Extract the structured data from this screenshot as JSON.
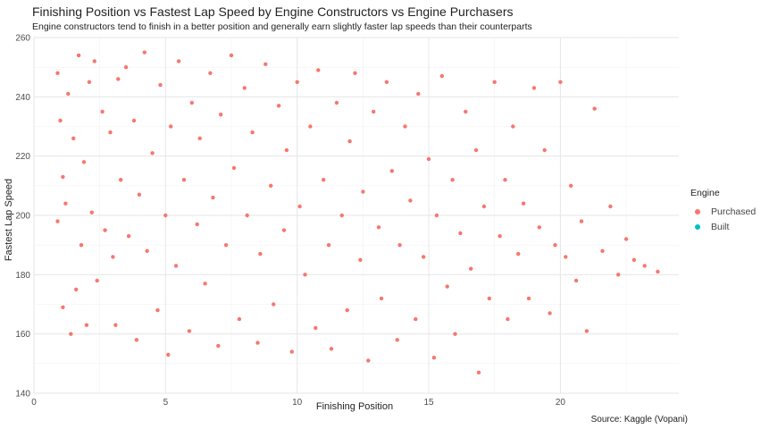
{
  "chart_data": {
    "type": "scatter",
    "title": "Finishing Position vs Fastest Lap Speed by Engine Constructors vs Engine Purchasers",
    "subtitle": "Engine constructors tend to finish in a better position and generally earn slightly faster lap speeds than their counterparts",
    "xlabel": "Finishing Position",
    "ylabel": "Fastest Lap Speed",
    "caption": "Source: Kaggle (Vopani)",
    "xlim": [
      0,
      24.5
    ],
    "ylim": [
      140,
      260
    ],
    "xticks": [
      "0",
      "5",
      "10",
      "15",
      "20"
    ],
    "yticks": [
      "140",
      "160",
      "180",
      "200",
      "220",
      "240",
      "260"
    ],
    "grid": true,
    "legend": {
      "title": "Engine",
      "placement": "right",
      "entries": [
        {
          "name": "Purchased",
          "color": "#F8766D"
        },
        {
          "name": "Built",
          "color": "#00BFC4"
        }
      ]
    },
    "series": [
      {
        "name": "Purchased",
        "color": "#F8766D",
        "points": [
          [
            0.9,
            248
          ],
          [
            0.9,
            198
          ],
          [
            1,
            232
          ],
          [
            1.1,
            169
          ],
          [
            1.1,
            213
          ],
          [
            1.2,
            204
          ],
          [
            1.3,
            241
          ],
          [
            1.4,
            160
          ],
          [
            1.5,
            226
          ],
          [
            1.6,
            175
          ],
          [
            1.7,
            254
          ],
          [
            1.8,
            190
          ],
          [
            1.9,
            218
          ],
          [
            2,
            163
          ],
          [
            2.1,
            245
          ],
          [
            2.2,
            201
          ],
          [
            2.3,
            252
          ],
          [
            2.4,
            178
          ],
          [
            2.6,
            235
          ],
          [
            2.7,
            195
          ],
          [
            2.9,
            228
          ],
          [
            3,
            186
          ],
          [
            3.1,
            163
          ],
          [
            3.2,
            246
          ],
          [
            3.3,
            212
          ],
          [
            3.5,
            250
          ],
          [
            3.6,
            193
          ],
          [
            3.8,
            232
          ],
          [
            3.9,
            158
          ],
          [
            4,
            207
          ],
          [
            4.2,
            255
          ],
          [
            4.3,
            188
          ],
          [
            4.5,
            221
          ],
          [
            4.7,
            168
          ],
          [
            4.8,
            244
          ],
          [
            5,
            200
          ],
          [
            5.1,
            153
          ],
          [
            5.2,
            230
          ],
          [
            5.4,
            183
          ],
          [
            5.5,
            252
          ],
          [
            5.7,
            212
          ],
          [
            5.9,
            161
          ],
          [
            6,
            238
          ],
          [
            6.2,
            197
          ],
          [
            6.3,
            226
          ],
          [
            6.5,
            177
          ],
          [
            6.7,
            248
          ],
          [
            6.8,
            206
          ],
          [
            7,
            156
          ],
          [
            7.1,
            234
          ],
          [
            7.3,
            190
          ],
          [
            7.5,
            254
          ],
          [
            7.6,
            216
          ],
          [
            7.8,
            165
          ],
          [
            8,
            243
          ],
          [
            8.1,
            200
          ],
          [
            8.3,
            228
          ],
          [
            8.5,
            157
          ],
          [
            8.6,
            187
          ],
          [
            8.8,
            251
          ],
          [
            9,
            210
          ],
          [
            9.1,
            170
          ],
          [
            9.3,
            237
          ],
          [
            9.5,
            195
          ],
          [
            9.6,
            222
          ],
          [
            9.8,
            154
          ],
          [
            10,
            245
          ],
          [
            10.1,
            203
          ],
          [
            10.3,
            180
          ],
          [
            10.5,
            230
          ],
          [
            10.7,
            162
          ],
          [
            10.8,
            249
          ],
          [
            11,
            212
          ],
          [
            11.2,
            190
          ],
          [
            11.3,
            155
          ],
          [
            11.5,
            238
          ],
          [
            11.7,
            200
          ],
          [
            11.9,
            168
          ],
          [
            12,
            225
          ],
          [
            12.2,
            248
          ],
          [
            12.4,
            185
          ],
          [
            12.5,
            208
          ],
          [
            12.7,
            151
          ],
          [
            12.9,
            235
          ],
          [
            13.1,
            196
          ],
          [
            13.2,
            172
          ],
          [
            13.4,
            245
          ],
          [
            13.6,
            215
          ],
          [
            13.8,
            158
          ],
          [
            13.9,
            190
          ],
          [
            14.1,
            230
          ],
          [
            14.3,
            205
          ],
          [
            14.5,
            165
          ],
          [
            14.6,
            241
          ],
          [
            14.8,
            186
          ],
          [
            15,
            219
          ],
          [
            15.2,
            152
          ],
          [
            15.3,
            200
          ],
          [
            15.5,
            247
          ],
          [
            15.7,
            176
          ],
          [
            15.9,
            212
          ],
          [
            16,
            160
          ],
          [
            16.2,
            194
          ],
          [
            16.4,
            235
          ],
          [
            16.6,
            182
          ],
          [
            16.8,
            222
          ],
          [
            16.9,
            147
          ],
          [
            17.1,
            203
          ],
          [
            17.3,
            172
          ],
          [
            17.5,
            245
          ],
          [
            17.7,
            193
          ],
          [
            17.9,
            212
          ],
          [
            18,
            165
          ],
          [
            18.2,
            230
          ],
          [
            18.4,
            187
          ],
          [
            18.6,
            204
          ],
          [
            18.8,
            172
          ],
          [
            19,
            243
          ],
          [
            19.2,
            196
          ],
          [
            19.4,
            222
          ],
          [
            19.6,
            167
          ],
          [
            19.8,
            190
          ],
          [
            20,
            245
          ],
          [
            20.2,
            186
          ],
          [
            20.4,
            210
          ],
          [
            20.6,
            178
          ],
          [
            20.8,
            198
          ],
          [
            21,
            161
          ],
          [
            21.3,
            236
          ],
          [
            21.6,
            188
          ],
          [
            21.9,
            203
          ],
          [
            22.2,
            180
          ],
          [
            22.5,
            192
          ],
          [
            22.8,
            185
          ],
          [
            23.2,
            183
          ],
          [
            23.7,
            181
          ]
        ]
      }
    ]
  }
}
